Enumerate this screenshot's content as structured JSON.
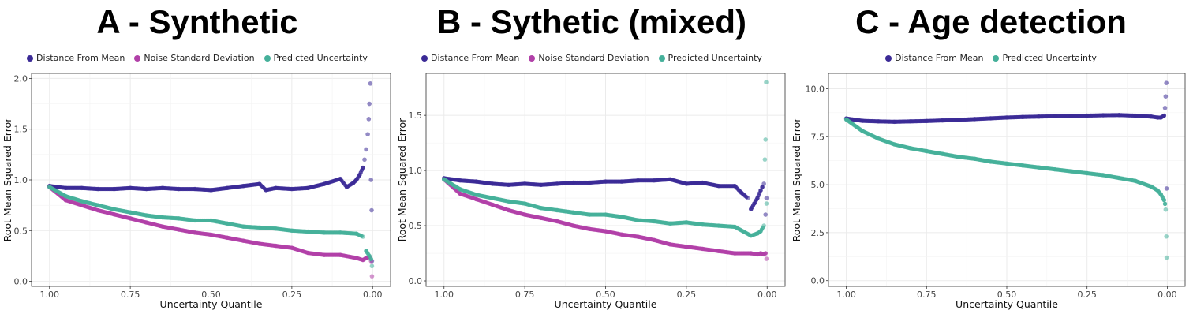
{
  "colors": {
    "distance": "#3b2a96",
    "noise": "#b140a8",
    "predicted": "#45b09a",
    "grid": "#ebebeb",
    "frame": "#333333"
  },
  "chart_data": [
    {
      "type": "scatter",
      "title": "A - Synthetic",
      "xlabel": "Uncertainty Quantile",
      "ylabel": "Root Mean Squared Error",
      "xlim": [
        1.0,
        0.0
      ],
      "x_reversed": true,
      "ylim": [
        -0.05,
        2.05
      ],
      "xticks": [
        1.0,
        0.75,
        0.5,
        0.25,
        0.0
      ],
      "xtick_labels": [
        "1.00",
        "0.75",
        "0.50",
        "0.25",
        "0.00"
      ],
      "yticks": [
        0.0,
        0.5,
        1.0,
        1.5,
        2.0
      ],
      "ytick_labels": [
        "0.0",
        "0.5",
        "1.0",
        "1.5",
        "2.0"
      ],
      "legend_position": "top-center",
      "grid": true,
      "series": [
        {
          "name": "Distance From Mean",
          "color_key": "distance",
          "x": [
            1.0,
            0.95,
            0.9,
            0.85,
            0.8,
            0.75,
            0.7,
            0.65,
            0.6,
            0.55,
            0.5,
            0.45,
            0.4,
            0.35,
            0.33,
            0.3,
            0.25,
            0.2,
            0.15,
            0.1,
            0.08,
            0.06,
            0.05,
            0.04,
            0.03,
            0.025,
            0.02,
            0.015,
            0.012,
            0.01,
            0.007,
            0.005,
            0.003,
            0.002
          ],
          "y": [
            0.94,
            0.92,
            0.92,
            0.91,
            0.91,
            0.92,
            0.91,
            0.92,
            0.91,
            0.91,
            0.9,
            0.92,
            0.94,
            0.96,
            0.9,
            0.92,
            0.91,
            0.92,
            0.96,
            1.01,
            0.93,
            0.97,
            1.0,
            1.05,
            1.12,
            1.2,
            1.3,
            1.45,
            1.6,
            1.75,
            1.95,
            1.0,
            0.7,
            0.2
          ]
        },
        {
          "name": "Noise Standard Deviation",
          "color_key": "noise",
          "x": [
            1.0,
            0.95,
            0.9,
            0.85,
            0.8,
            0.75,
            0.7,
            0.65,
            0.6,
            0.55,
            0.5,
            0.45,
            0.4,
            0.35,
            0.3,
            0.25,
            0.2,
            0.15,
            0.1,
            0.05,
            0.03,
            0.02,
            0.01,
            0.005,
            0.002
          ],
          "y": [
            0.93,
            0.8,
            0.75,
            0.7,
            0.66,
            0.62,
            0.58,
            0.54,
            0.51,
            0.48,
            0.46,
            0.43,
            0.4,
            0.37,
            0.35,
            0.33,
            0.28,
            0.26,
            0.26,
            0.23,
            0.21,
            0.23,
            0.24,
            0.2,
            0.05
          ]
        },
        {
          "name": "Predicted Uncertainty",
          "color_key": "predicted",
          "x": [
            1.0,
            0.95,
            0.9,
            0.85,
            0.8,
            0.75,
            0.7,
            0.65,
            0.6,
            0.55,
            0.5,
            0.45,
            0.4,
            0.35,
            0.3,
            0.25,
            0.2,
            0.15,
            0.1,
            0.05,
            0.03,
            0.02,
            0.01,
            0.005,
            0.002
          ],
          "y": [
            0.93,
            0.84,
            0.79,
            0.75,
            0.71,
            0.68,
            0.65,
            0.63,
            0.62,
            0.6,
            0.6,
            0.57,
            0.54,
            0.53,
            0.52,
            0.5,
            0.49,
            0.48,
            0.48,
            0.47,
            0.44,
            0.3,
            0.25,
            0.22,
            0.15
          ]
        }
      ]
    },
    {
      "type": "scatter",
      "title": "B - Sythetic (mixed)",
      "xlabel": "Uncertainty Quantile",
      "ylabel": "Root Mean Squared Error",
      "xlim": [
        1.0,
        0.0
      ],
      "x_reversed": true,
      "ylim": [
        -0.05,
        1.88
      ],
      "xticks": [
        1.0,
        0.75,
        0.5,
        0.25,
        0.0
      ],
      "xtick_labels": [
        "1.00",
        "0.75",
        "0.50",
        "0.25",
        "0.00"
      ],
      "yticks": [
        0.0,
        0.5,
        1.0,
        1.5
      ],
      "ytick_labels": [
        "0.0",
        "0.5",
        "1.0",
        "1.5"
      ],
      "legend_position": "top-center",
      "grid": true,
      "series": [
        {
          "name": "Distance From Mean",
          "color_key": "distance",
          "x": [
            1.0,
            0.95,
            0.9,
            0.85,
            0.8,
            0.75,
            0.7,
            0.65,
            0.6,
            0.55,
            0.5,
            0.45,
            0.4,
            0.35,
            0.3,
            0.25,
            0.2,
            0.15,
            0.1,
            0.08,
            0.06,
            0.05,
            0.04,
            0.03,
            0.02,
            0.015,
            0.01,
            0.005,
            0.002
          ],
          "y": [
            0.93,
            0.91,
            0.9,
            0.88,
            0.87,
            0.88,
            0.87,
            0.88,
            0.89,
            0.89,
            0.9,
            0.9,
            0.91,
            0.91,
            0.92,
            0.88,
            0.89,
            0.86,
            0.86,
            0.8,
            0.75,
            0.65,
            0.7,
            0.75,
            0.82,
            0.85,
            0.88,
            0.6,
            0.75
          ]
        },
        {
          "name": "Noise Standard Deviation",
          "color_key": "noise",
          "x": [
            1.0,
            0.95,
            0.9,
            0.85,
            0.8,
            0.75,
            0.7,
            0.65,
            0.6,
            0.55,
            0.5,
            0.45,
            0.4,
            0.35,
            0.3,
            0.25,
            0.2,
            0.15,
            0.1,
            0.05,
            0.03,
            0.02,
            0.01,
            0.005,
            0.002
          ],
          "y": [
            0.92,
            0.79,
            0.74,
            0.69,
            0.64,
            0.6,
            0.57,
            0.54,
            0.5,
            0.47,
            0.45,
            0.42,
            0.4,
            0.37,
            0.33,
            0.31,
            0.29,
            0.27,
            0.25,
            0.25,
            0.24,
            0.25,
            0.24,
            0.25,
            0.2
          ]
        },
        {
          "name": "Predicted Uncertainty",
          "color_key": "predicted",
          "x": [
            1.0,
            0.95,
            0.9,
            0.85,
            0.8,
            0.75,
            0.7,
            0.65,
            0.6,
            0.55,
            0.5,
            0.45,
            0.4,
            0.35,
            0.3,
            0.25,
            0.2,
            0.15,
            0.1,
            0.05,
            0.03,
            0.02,
            0.01,
            0.007,
            0.005,
            0.003,
            0.002
          ],
          "y": [
            0.92,
            0.83,
            0.78,
            0.75,
            0.72,
            0.7,
            0.66,
            0.64,
            0.62,
            0.6,
            0.6,
            0.58,
            0.55,
            0.54,
            0.52,
            0.53,
            0.51,
            0.5,
            0.49,
            0.41,
            0.43,
            0.45,
            0.5,
            1.1,
            1.28,
            1.8,
            0.7
          ]
        }
      ]
    },
    {
      "type": "scatter",
      "title": "C - Age detection",
      "xlabel": "Uncertainty Quantile",
      "ylabel": "Root Mean Squared Error",
      "xlim": [
        1.0,
        0.0
      ],
      "x_reversed": true,
      "ylim": [
        -0.3,
        10.8
      ],
      "xticks": [
        1.0,
        0.75,
        0.5,
        0.25,
        0.0
      ],
      "xtick_labels": [
        "1.00",
        "0.75",
        "0.50",
        "0.25",
        "0.00"
      ],
      "yticks": [
        0.0,
        2.5,
        5.0,
        7.5,
        10.0
      ],
      "ytick_labels": [
        "0.0",
        "2.5",
        "5.0",
        "7.5",
        "10.0"
      ],
      "legend_position": "top-center",
      "grid": true,
      "series": [
        {
          "name": "Distance From Mean",
          "color_key": "distance",
          "x": [
            1.0,
            0.95,
            0.9,
            0.85,
            0.8,
            0.75,
            0.7,
            0.65,
            0.6,
            0.55,
            0.5,
            0.45,
            0.4,
            0.35,
            0.3,
            0.25,
            0.2,
            0.15,
            0.1,
            0.05,
            0.03,
            0.02,
            0.01,
            0.007,
            0.005,
            0.003,
            0.002
          ],
          "y": [
            8.45,
            8.33,
            8.3,
            8.28,
            8.3,
            8.32,
            8.35,
            8.38,
            8.42,
            8.46,
            8.5,
            8.53,
            8.55,
            8.57,
            8.58,
            8.6,
            8.62,
            8.63,
            8.6,
            8.55,
            8.5,
            8.5,
            8.6,
            9.0,
            9.6,
            10.3,
            4.8
          ]
        },
        {
          "name": "Predicted Uncertainty",
          "color_key": "predicted",
          "x": [
            1.0,
            0.95,
            0.9,
            0.85,
            0.8,
            0.75,
            0.7,
            0.65,
            0.6,
            0.55,
            0.5,
            0.45,
            0.4,
            0.35,
            0.3,
            0.25,
            0.2,
            0.15,
            0.1,
            0.05,
            0.03,
            0.02,
            0.01,
            0.007,
            0.005,
            0.003,
            0.002
          ],
          "y": [
            8.4,
            7.8,
            7.4,
            7.1,
            6.9,
            6.75,
            6.6,
            6.45,
            6.35,
            6.2,
            6.1,
            6.0,
            5.9,
            5.8,
            5.7,
            5.6,
            5.5,
            5.35,
            5.2,
            4.9,
            4.7,
            4.5,
            4.2,
            4.0,
            3.7,
            2.3,
            1.2
          ]
        }
      ]
    }
  ]
}
